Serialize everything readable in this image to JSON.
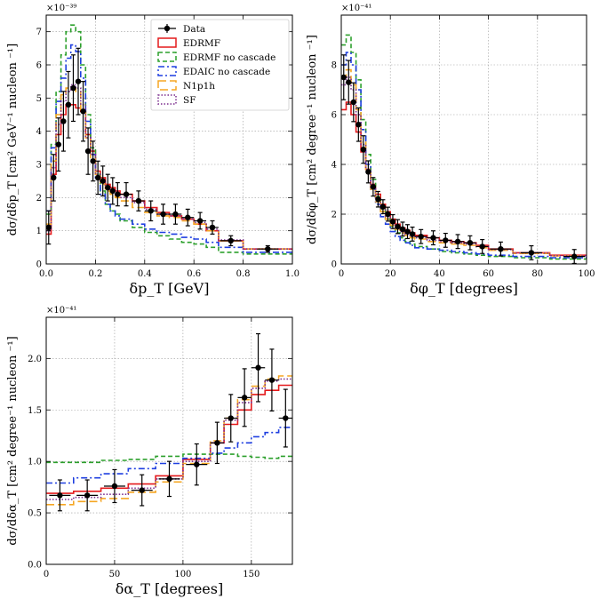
{
  "chart_data": [
    {
      "type": "line",
      "id": "pt",
      "xlabel": "δp_T [GeV]",
      "ylabel": "dσ/dδp_T [cm² GeV⁻¹ nucleon ⁻¹]",
      "exponent": "×10⁻³⁹",
      "xlim": [
        0,
        1.0
      ],
      "ylim": [
        0,
        7.5
      ],
      "xticks": [
        0,
        0.2,
        0.4,
        0.6,
        0.8,
        1.0
      ],
      "xtick_labels": [
        "0.0",
        "0.2",
        "0.4",
        "0.6",
        "0.8",
        "1.0"
      ],
      "yticks": [
        0,
        1,
        2,
        3,
        4,
        5,
        6,
        7
      ],
      "ytick_labels": [
        "0",
        "1",
        "2",
        "3",
        "4",
        "5",
        "6",
        "7"
      ],
      "grid": true,
      "legend": "top-right",
      "bin_edges": [
        0,
        0.02,
        0.04,
        0.06,
        0.08,
        0.1,
        0.12,
        0.14,
        0.16,
        0.18,
        0.2,
        0.22,
        0.24,
        0.26,
        0.28,
        0.3,
        0.35,
        0.4,
        0.45,
        0.5,
        0.55,
        0.6,
        0.65,
        0.7,
        0.8,
        1.0
      ],
      "data": {
        "x": [
          0.01,
          0.03,
          0.05,
          0.07,
          0.09,
          0.11,
          0.13,
          0.15,
          0.17,
          0.19,
          0.21,
          0.23,
          0.25,
          0.27,
          0.29,
          0.325,
          0.375,
          0.425,
          0.475,
          0.525,
          0.575,
          0.625,
          0.675,
          0.75,
          0.9
        ],
        "y": [
          1.1,
          2.6,
          3.6,
          4.3,
          4.8,
          5.3,
          5.5,
          4.6,
          3.4,
          3.1,
          2.6,
          2.5,
          2.3,
          2.2,
          2.1,
          2.1,
          1.9,
          1.6,
          1.5,
          1.5,
          1.4,
          1.3,
          1.1,
          0.7,
          0.45
        ],
        "err": [
          0.5,
          0.7,
          0.8,
          0.9,
          1.0,
          1.0,
          1.0,
          0.9,
          0.7,
          0.6,
          0.5,
          0.45,
          0.4,
          0.4,
          0.35,
          0.35,
          0.3,
          0.3,
          0.3,
          0.3,
          0.25,
          0.25,
          0.2,
          0.15,
          0.1
        ]
      },
      "series": [
        {
          "name": "EDRMF",
          "values": [
            0.9,
            2.7,
            3.9,
            4.5,
            4.8,
            4.8,
            4.7,
            4.6,
            3.9,
            3.4,
            2.8,
            2.6,
            2.4,
            2.3,
            2.2,
            2.1,
            1.9,
            1.7,
            1.55,
            1.45,
            1.35,
            1.2,
            1.0,
            0.7,
            0.45
          ]
        },
        {
          "name": "EDRMF no cascade",
          "values": [
            1.5,
            3.6,
            5.2,
            6.3,
            7.0,
            7.2,
            7.0,
            6.0,
            4.5,
            3.5,
            2.7,
            2.2,
            1.8,
            1.6,
            1.5,
            1.3,
            1.1,
            0.95,
            0.85,
            0.75,
            0.65,
            0.6,
            0.5,
            0.35,
            0.3
          ]
        },
        {
          "name": "EDAIC no cascade",
          "values": [
            1.6,
            3.5,
            4.9,
            5.6,
            6.2,
            6.6,
            6.4,
            5.6,
            4.3,
            3.3,
            2.6,
            2.1,
            1.8,
            1.6,
            1.45,
            1.35,
            1.2,
            1.05,
            0.95,
            0.9,
            0.8,
            0.75,
            0.65,
            0.5,
            0.35
          ]
        },
        {
          "name": "N1p1h",
          "values": [
            1.2,
            3.1,
            4.5,
            5.1,
            5.3,
            5.3,
            5.2,
            4.6,
            3.8,
            3.2,
            2.7,
            2.4,
            2.2,
            2.1,
            2.0,
            1.9,
            1.7,
            1.55,
            1.45,
            1.4,
            1.3,
            1.2,
            1.0,
            0.7,
            0.45
          ]
        },
        {
          "name": "SF",
          "values": [
            1.0,
            2.9,
            4.2,
            4.9,
            5.2,
            5.4,
            5.3,
            4.8,
            3.8,
            3.3,
            2.7,
            2.5,
            2.3,
            2.2,
            2.1,
            2.0,
            1.85,
            1.65,
            1.5,
            1.45,
            1.35,
            1.25,
            1.05,
            0.72,
            0.45
          ]
        }
      ]
    },
    {
      "type": "line",
      "id": "phi",
      "xlabel": "δφ_T [degrees]",
      "ylabel": "dσ/dδφ_T [cm² degree⁻¹ nucleon ⁻¹]",
      "exponent": "×10⁻⁴¹",
      "xlim": [
        0,
        100
      ],
      "ylim": [
        0,
        10
      ],
      "xticks": [
        0,
        20,
        40,
        60,
        80,
        100
      ],
      "xtick_labels": [
        "0",
        "20",
        "40",
        "60",
        "80",
        "100"
      ],
      "yticks": [
        0,
        2,
        4,
        6,
        8
      ],
      "ytick_labels": [
        "0",
        "2",
        "4",
        "6",
        "8"
      ],
      "grid": true,
      "bin_edges": [
        0,
        2,
        4,
        6,
        8,
        10,
        12,
        14,
        16,
        18,
        20,
        22,
        24,
        26,
        28,
        30,
        35,
        40,
        45,
        50,
        55,
        60,
        70,
        85,
        100
      ],
      "data": {
        "x": [
          1,
          3,
          5,
          7,
          9,
          11,
          13,
          15,
          17,
          19,
          21,
          23,
          25,
          27,
          29,
          32.5,
          37.5,
          42.5,
          47.5,
          52.5,
          57.5,
          65,
          77.5,
          95
        ],
        "y": [
          7.5,
          7.3,
          6.5,
          5.6,
          4.6,
          3.7,
          3.1,
          2.6,
          2.3,
          2.0,
          1.7,
          1.5,
          1.4,
          1.3,
          1.2,
          1.1,
          1.05,
          0.95,
          0.9,
          0.85,
          0.7,
          0.6,
          0.45,
          0.3
        ]
      },
      "series": [
        {
          "name": "EDRMF",
          "values": [
            6.2,
            6.5,
            6.0,
            5.3,
            4.5,
            3.8,
            3.2,
            2.8,
            2.4,
            2.1,
            1.8,
            1.6,
            1.45,
            1.35,
            1.25,
            1.15,
            1.05,
            0.95,
            0.9,
            0.85,
            0.75,
            0.6,
            0.45,
            0.35
          ]
        },
        {
          "name": "EDRMF no cascade",
          "values": [
            8.8,
            9.2,
            8.5,
            7.4,
            5.8,
            4.4,
            3.4,
            2.7,
            2.2,
            1.8,
            1.5,
            1.25,
            1.05,
            0.9,
            0.8,
            0.7,
            0.6,
            0.5,
            0.45,
            0.4,
            0.35,
            0.3,
            0.25,
            0.2
          ]
        },
        {
          "name": "EDAIC no cascade",
          "values": [
            8.0,
            8.5,
            8.0,
            7.0,
            5.4,
            4.0,
            3.0,
            2.4,
            1.9,
            1.6,
            1.3,
            1.1,
            0.95,
            0.85,
            0.75,
            0.65,
            0.6,
            0.55,
            0.5,
            0.45,
            0.4,
            0.35,
            0.3,
            0.25
          ]
        },
        {
          "name": "N1p1h",
          "values": [
            7.5,
            7.8,
            7.2,
            6.2,
            4.9,
            3.8,
            3.0,
            2.5,
            2.1,
            1.8,
            1.55,
            1.4,
            1.25,
            1.15,
            1.05,
            1.0,
            0.9,
            0.85,
            0.8,
            0.75,
            0.65,
            0.55,
            0.42,
            0.32
          ]
        },
        {
          "name": "SF",
          "values": [
            7.2,
            7.5,
            7.0,
            6.0,
            4.8,
            3.8,
            3.1,
            2.6,
            2.2,
            1.9,
            1.65,
            1.45,
            1.3,
            1.2,
            1.1,
            1.05,
            0.95,
            0.9,
            0.85,
            0.8,
            0.7,
            0.58,
            0.44,
            0.33
          ]
        }
      ]
    },
    {
      "type": "line",
      "id": "alpha",
      "xlabel": "δα_T [degrees]",
      "ylabel": "dσ/dδα_T [cm² degree⁻¹ nucleon ⁻¹]",
      "exponent": "×10⁻⁴¹",
      "xlim": [
        0,
        180
      ],
      "ylim": [
        0,
        2.4
      ],
      "xticks": [
        0,
        50,
        100,
        150
      ],
      "xtick_labels": [
        "0",
        "50",
        "100",
        "150"
      ],
      "yticks": [
        0.0,
        0.5,
        1.0,
        1.5,
        2.0
      ],
      "ytick_labels": [
        "0.0",
        "0.5",
        "1.0",
        "1.5",
        "2.0"
      ],
      "grid": true,
      "bin_edges": [
        0,
        20,
        40,
        60,
        80,
        100,
        120,
        130,
        140,
        150,
        160,
        170,
        180
      ],
      "data": {
        "x": [
          10,
          30,
          50,
          70,
          90,
          110,
          125,
          135,
          145,
          155,
          165,
          175
        ],
        "y": [
          0.67,
          0.67,
          0.76,
          0.72,
          0.83,
          0.97,
          1.18,
          1.42,
          1.62,
          1.91,
          1.79,
          1.42
        ],
        "err": [
          0.15,
          0.15,
          0.16,
          0.15,
          0.17,
          0.2,
          0.2,
          0.23,
          0.28,
          0.33,
          0.3,
          0.28
        ]
      },
      "series": [
        {
          "name": "EDRMF",
          "values": [
            0.69,
            0.71,
            0.74,
            0.78,
            0.86,
            1.02,
            1.18,
            1.36,
            1.5,
            1.65,
            1.69,
            1.74
          ]
        },
        {
          "name": "EDRMF no cascade",
          "values": [
            0.99,
            0.99,
            1.01,
            1.02,
            1.05,
            1.07,
            1.07,
            1.07,
            1.05,
            1.04,
            1.03,
            1.05
          ]
        },
        {
          "name": "EDAIC no cascade",
          "values": [
            0.79,
            0.84,
            0.88,
            0.93,
            0.98,
            1.03,
            1.08,
            1.13,
            1.18,
            1.24,
            1.28,
            1.33
          ]
        },
        {
          "name": "N1p1h",
          "values": [
            0.58,
            0.61,
            0.64,
            0.7,
            0.8,
            0.98,
            1.2,
            1.42,
            1.6,
            1.73,
            1.8,
            1.83
          ]
        },
        {
          "name": "SF",
          "values": [
            0.63,
            0.65,
            0.68,
            0.74,
            0.83,
            1.0,
            1.18,
            1.4,
            1.57,
            1.71,
            1.78,
            1.8
          ]
        }
      ]
    }
  ],
  "series_styles": [
    {
      "name": "EDRMF",
      "color": "#e41a1c",
      "dash": "",
      "width": 1.6
    },
    {
      "name": "EDRMF no cascade",
      "color": "#2ca02c",
      "dash": "5,3",
      "width": 1.6
    },
    {
      "name": "EDAIC no cascade",
      "color": "#1f3fe0",
      "dash": "7,3,2,3",
      "width": 1.6
    },
    {
      "name": "N1p1h",
      "color": "#f5a623",
      "dash": "9,4",
      "width": 1.6
    },
    {
      "name": "SF",
      "color": "#7b2d8e",
      "dash": "1.5,2",
      "width": 1.6
    }
  ],
  "data_style": {
    "name": "Data",
    "color": "#000000"
  },
  "legend": {
    "entries": [
      "Data",
      "EDRMF",
      "EDRMF no cascade",
      "EDAIC no cascade",
      "N1p1h",
      "SF"
    ]
  }
}
